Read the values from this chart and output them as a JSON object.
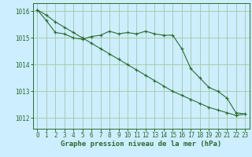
{
  "background_color": "#cceeff",
  "grid_color": "#aaccaa",
  "line_color": "#2d6a2d",
  "marker_color": "#2d6a2d",
  "xlabel": "Graphe pression niveau de la mer (hPa)",
  "xlabel_fontsize": 6.5,
  "tick_fontsize": 5.5,
  "ylim": [
    1011.6,
    1016.3
  ],
  "yticks": [
    1012,
    1013,
    1014,
    1015,
    1016
  ],
  "xlim": [
    -0.5,
    23.5
  ],
  "xticks": [
    0,
    1,
    2,
    3,
    4,
    5,
    6,
    7,
    8,
    9,
    10,
    11,
    12,
    13,
    14,
    15,
    16,
    17,
    18,
    19,
    20,
    21,
    22,
    23
  ],
  "series1_x": [
    0,
    1,
    2,
    3,
    4,
    5,
    6,
    7,
    8,
    9,
    10,
    11,
    12,
    13,
    14,
    15,
    16,
    17,
    18,
    19,
    20,
    21,
    22,
    23
  ],
  "series1_y": [
    1016.05,
    1015.65,
    1015.2,
    1015.15,
    1015.0,
    1014.95,
    1015.05,
    1015.1,
    1015.25,
    1015.15,
    1015.2,
    1015.15,
    1015.25,
    1015.15,
    1015.1,
    1015.1,
    1014.6,
    1013.85,
    1013.5,
    1013.15,
    1013.0,
    1012.75,
    1012.2,
    1012.15
  ],
  "series2_x": [
    0,
    1,
    2,
    3,
    4,
    5,
    6,
    7,
    8,
    9,
    10,
    11,
    12,
    13,
    14,
    15,
    16,
    17,
    18,
    19,
    20,
    21,
    22,
    23
  ],
  "series2_y": [
    1016.05,
    1015.85,
    1015.6,
    1015.4,
    1015.2,
    1015.0,
    1014.8,
    1014.6,
    1014.4,
    1014.2,
    1014.0,
    1013.8,
    1013.6,
    1013.4,
    1013.2,
    1013.0,
    1012.85,
    1012.7,
    1012.55,
    1012.4,
    1012.3,
    1012.2,
    1012.1,
    1012.15
  ]
}
